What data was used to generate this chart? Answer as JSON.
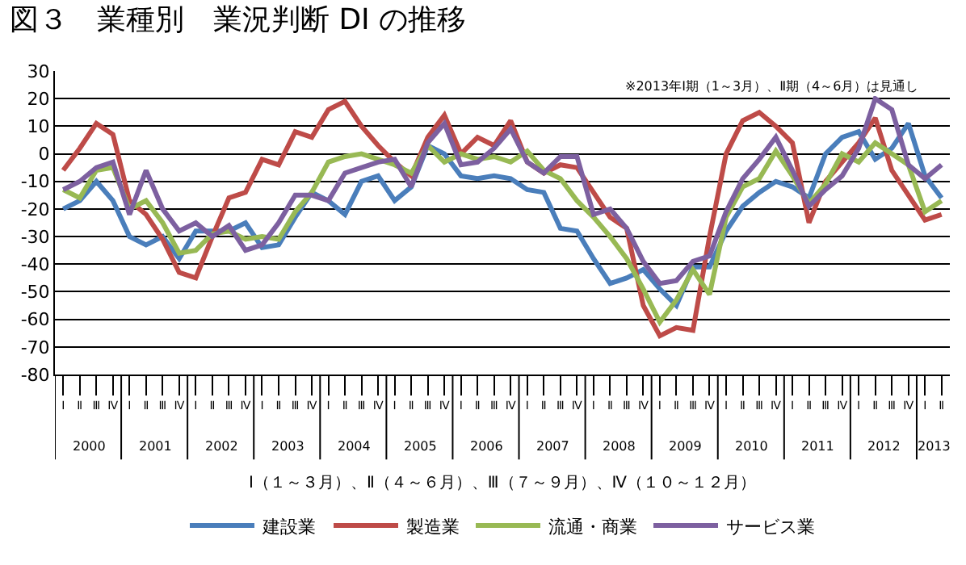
{
  "chart_data": {
    "type": "line",
    "title": "図３　業種別　業況判断 DI の推移",
    "categories": [
      "Ⅰ",
      "Ⅱ",
      "Ⅲ",
      "Ⅳ",
      "Ⅰ",
      "Ⅱ",
      "Ⅲ",
      "Ⅳ",
      "Ⅰ",
      "Ⅱ",
      "Ⅲ",
      "Ⅳ",
      "Ⅰ",
      "Ⅱ",
      "Ⅲ",
      "Ⅳ",
      "Ⅰ",
      "Ⅱ",
      "Ⅲ",
      "Ⅳ",
      "Ⅰ",
      "Ⅱ",
      "Ⅲ",
      "Ⅳ",
      "Ⅰ",
      "Ⅱ",
      "Ⅲ",
      "Ⅳ",
      "Ⅰ",
      "Ⅱ",
      "Ⅲ",
      "Ⅳ",
      "Ⅰ",
      "Ⅱ",
      "Ⅲ",
      "Ⅳ",
      "Ⅰ",
      "Ⅱ",
      "Ⅲ",
      "Ⅳ",
      "Ⅰ",
      "Ⅱ",
      "Ⅲ",
      "Ⅳ",
      "Ⅰ",
      "Ⅱ",
      "Ⅲ",
      "Ⅳ",
      "Ⅰ",
      "Ⅱ",
      "Ⅲ",
      "Ⅳ",
      "Ⅰ",
      "Ⅱ"
    ],
    "series": [
      {
        "name": "建設業",
        "color": "#4a7ebb",
        "values": [
          -20,
          -17,
          -10,
          -17,
          -30,
          -33,
          -30,
          -38,
          -28,
          -28,
          -28,
          -25,
          -34,
          -33,
          -23,
          -14,
          -17,
          -22,
          -10,
          -8,
          -17,
          -12,
          3,
          0,
          -8,
          -9,
          -8,
          -9,
          -13,
          -14,
          -27,
          -28,
          -38,
          -47,
          -45,
          -42,
          -49,
          -55,
          -41,
          -41,
          -28,
          -19,
          -14,
          -10,
          -12,
          -16,
          0,
          6,
          8,
          -2,
          2,
          11,
          -8,
          -16
        ]
      },
      {
        "name": "製造業",
        "color": "#be4b48",
        "values": [
          -6,
          2,
          11,
          7,
          -17,
          -22,
          -31,
          -43,
          -45,
          -30,
          -16,
          -14,
          -2,
          -4,
          8,
          6,
          16,
          19,
          10,
          3,
          -3,
          -8,
          6,
          14,
          0,
          6,
          3,
          12,
          -3,
          -7,
          -4,
          -5,
          -14,
          -23,
          -27,
          -55,
          -66,
          -63,
          -64,
          -30,
          0,
          12,
          15,
          10,
          4,
          -25,
          -10,
          -3,
          4,
          13,
          -6,
          -15,
          -24,
          -22
        ]
      },
      {
        "name": "流通・商業",
        "color": "#98b954",
        "values": [
          -13,
          -16,
          -6,
          -5,
          -20,
          -17,
          -25,
          -36,
          -35,
          -29,
          -28,
          -31,
          -30,
          -31,
          -21,
          -14,
          -3,
          -1,
          0,
          -2,
          -4,
          -7,
          3,
          -3,
          0,
          -2,
          -1,
          -3,
          1,
          -6,
          -9,
          -17,
          -23,
          -30,
          -38,
          -49,
          -61,
          -53,
          -42,
          -51,
          -23,
          -12,
          -9,
          1,
          -8,
          -18,
          -11,
          0,
          -3,
          4,
          0,
          -4,
          -21,
          -17
        ]
      },
      {
        "name": "サービス業",
        "color": "#7d60a0",
        "values": [
          -13,
          -10,
          -5,
          -3,
          -22,
          -6,
          -20,
          -28,
          -25,
          -30,
          -26,
          -35,
          -33,
          -25,
          -15,
          -15,
          -17,
          -7,
          -5,
          -3,
          -2,
          -12,
          4,
          11,
          -4,
          -3,
          2,
          9,
          -3,
          -7,
          -1,
          -1,
          -22,
          -20,
          -27,
          -39,
          -47,
          -46,
          -39,
          -37,
          -21,
          -9,
          -2,
          6,
          -6,
          -19,
          -13,
          -8,
          2,
          20,
          16,
          -4,
          -9,
          -4
        ]
      }
    ],
    "ylim": [
      -80,
      30
    ],
    "yticks": [
      -80,
      -70,
      -60,
      -50,
      -40,
      -30,
      -20,
      -10,
      0,
      10,
      20,
      30
    ],
    "grid": "y",
    "legend": "bottom",
    "marker": "none",
    "line_style": "solid",
    "annotations": [
      "※2013年Ⅰ期（1～3月）、Ⅱ期（4～6月）は見通し",
      "Ⅰ（１～３月）、Ⅱ（４～６月）、Ⅲ（７～９月）、Ⅳ（１０～１２月）",
      "2000",
      "2001",
      "2002",
      "2003",
      "2004",
      "2005",
      "2006",
      "2007",
      "2008",
      "2009",
      "2010",
      "2011",
      "2012",
      "2013"
    ]
  }
}
